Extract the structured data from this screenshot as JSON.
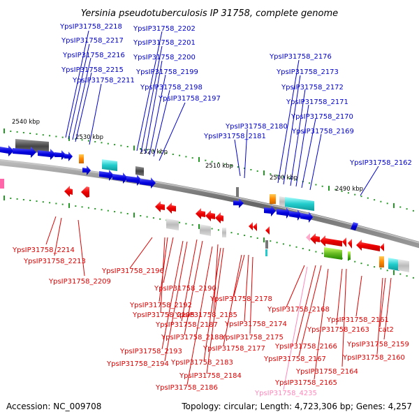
{
  "title": "Yersinia pseudotuberculosis IP 31758, complete genome",
  "footer": {
    "accession": "Accession: NC_009708",
    "summary": "Topology: circular; Length: 4,723,306 bp; Genes: 4,257"
  },
  "scale_labels": [
    "2540 kbp",
    "2530 kbp",
    "2520 kbp",
    "2510 kbp",
    "2500 kbp",
    "2490 kbp"
  ],
  "colors": {
    "forward_label": "#0000cc",
    "reverse_label": "#dd0000",
    "rna_label": "#ff88bb",
    "backbone": "#888888",
    "tick": "#229922"
  },
  "forward_genes": [
    "YpsIP31758_2218",
    "YpsIP31758_2217",
    "YpsIP31758_2216",
    "YpsIP31758_2215",
    "YpsIP31758_2211",
    "YpsIP31758_2202",
    "YpsIP31758_2201",
    "YpsIP31758_2200",
    "YpsIP31758_2199",
    "YpsIP31758_2198",
    "YpsIP31758_2197",
    "YpsIP31758_2180",
    "YpsIP31758_2181",
    "YpsIP31758_2176",
    "YpsIP31758_2173",
    "YpsIP31758_2172",
    "YpsIP31758_2171",
    "YpsIP31758_2170",
    "YpsIP31758_2169",
    "YpsIP31758_2162"
  ],
  "reverse_genes": [
    "YpsIP31758_2214",
    "YpsIP31758_2213",
    "YpsIP31758_2209",
    "YpsIP31758_2196",
    "YpsIP31758_2190",
    "YpsIP31758_2192",
    "YpsIP31758_2195",
    "YpsIP31758_2187",
    "YpsIP31758_2185",
    "YpsIP31758_2178",
    "YpsIP31758_2174",
    "YpsIP31758_2188",
    "YpsIP31758_2175",
    "YpsIP31758_2177",
    "YpsIP31758_2193",
    "YpsIP31758_2194",
    "YpsIP31758_2183",
    "YpsIP31758_2184",
    "YpsIP31758_2186",
    "YpsIP31758_2168",
    "YpsIP31758_2166",
    "YpsIP31758_2167",
    "YpsIP31758_2164",
    "YpsIP31758_2165",
    "YpsIP31758_2163",
    "YpsIP31758_2161",
    "cat2",
    "YpsIP31758_2159",
    "YpsIP31758_2160"
  ],
  "rna_genes": [
    "YpsIP31758_4235"
  ]
}
